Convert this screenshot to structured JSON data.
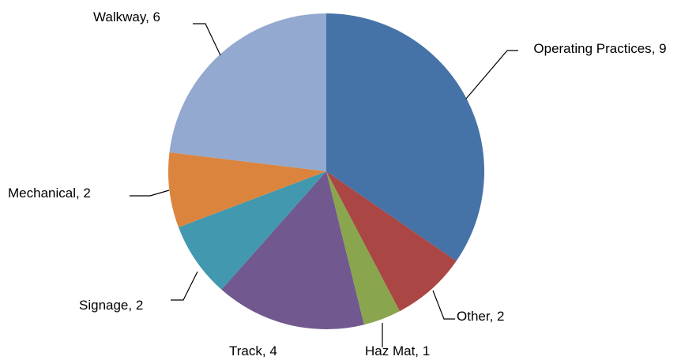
{
  "chart_data": {
    "type": "pie",
    "values": [
      9,
      2,
      1,
      4,
      2,
      2,
      6
    ],
    "value_labels": [
      "Operating Practices, 9",
      "Other, 2",
      "Haz Mat, 1",
      "Track, 4",
      "Signage, 2",
      "Mechanical, 2",
      "Walkway, 6"
    ],
    "colors": [
      "#4572a7",
      "#aa4643",
      "#89a54e",
      "#71588f",
      "#4198af",
      "#db843d",
      "#93a9cf"
    ]
  }
}
